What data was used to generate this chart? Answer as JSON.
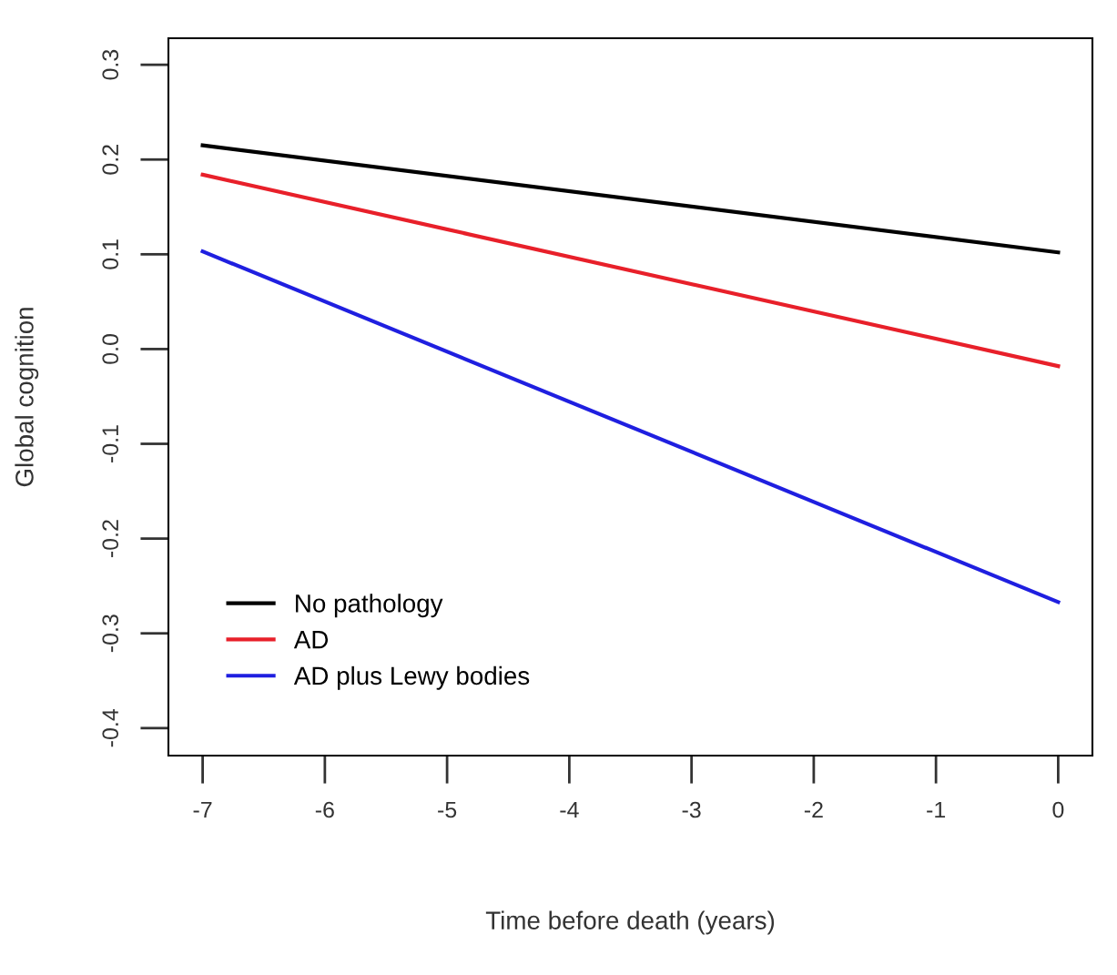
{
  "chart_data": {
    "type": "line",
    "xlabel": "Time before death (years)",
    "ylabel": "Global cognition",
    "x": [
      -7,
      0
    ],
    "series": [
      {
        "name": "No pathology",
        "color": "#000000",
        "values": [
          0.215,
          0.102
        ]
      },
      {
        "name": "AD",
        "color": "#e8202a",
        "values": [
          0.184,
          -0.018
        ]
      },
      {
        "name": "AD plus Lewy bodies",
        "color": "#1f1fe0",
        "values": [
          0.103,
          -0.267
        ]
      }
    ],
    "xlim": [
      -7.28,
      0.28
    ],
    "ylim": [
      -0.429,
      0.328
    ],
    "xticks": [
      -7,
      -6,
      -5,
      -4,
      -3,
      -2,
      -1,
      0
    ],
    "yticks": [
      -0.4,
      -0.3,
      -0.2,
      -0.1,
      {
        "value": 0,
        "label": "0.0"
      },
      0.1,
      0.2,
      0.3
    ],
    "grid": false,
    "legend": "bottom left",
    "marker": "none",
    "line_style": "solid"
  }
}
